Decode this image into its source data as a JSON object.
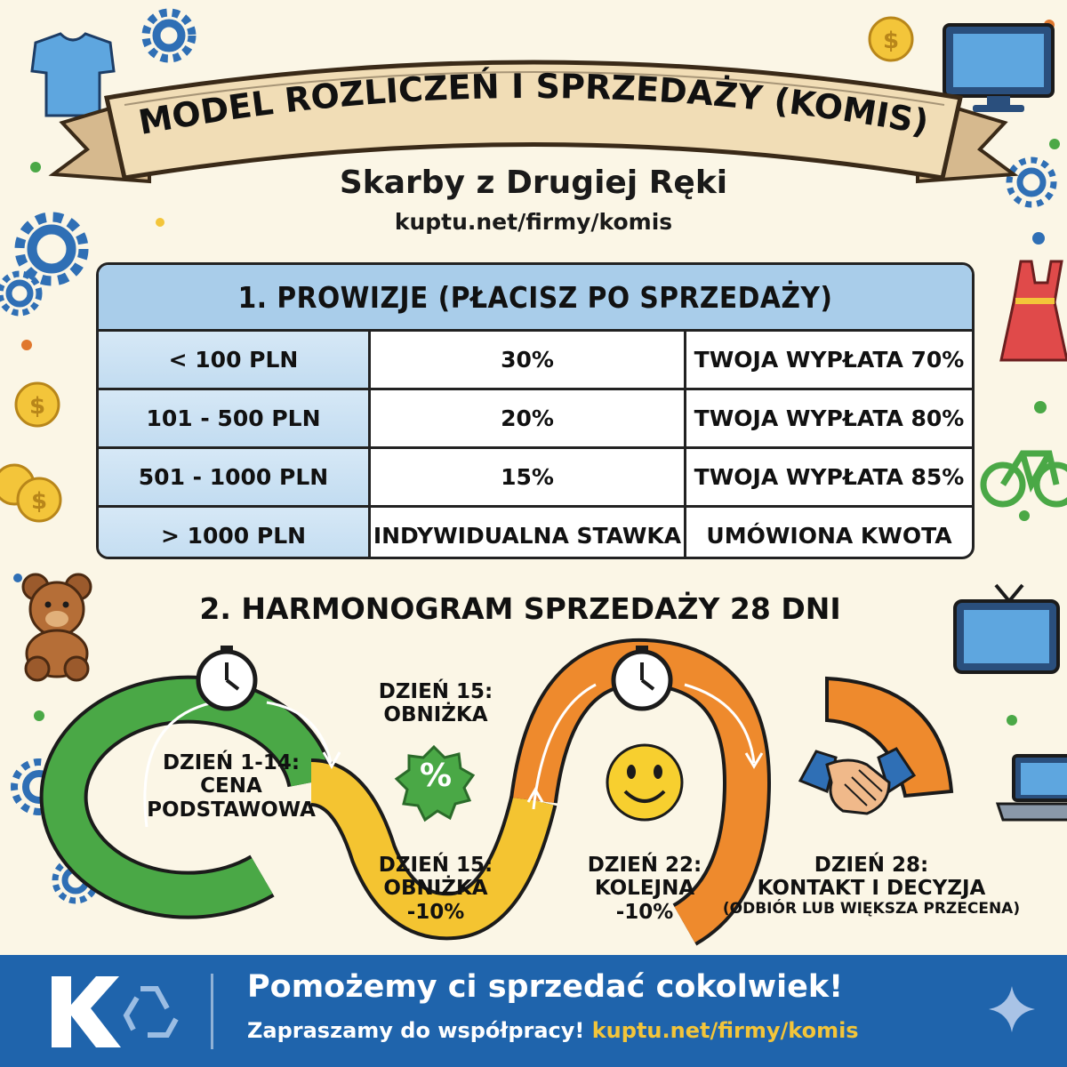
{
  "header": {
    "title": "MODEL ROZLICZEŃ I SPRZEDAŻY (KOMIS)",
    "subtitle": "Skarby z Drugiej Ręki",
    "url": "kuptu.net/firmy/komis"
  },
  "commissions": {
    "heading": "1. PROWIZJE (PŁACISZ PO SPRZEDAŻY)",
    "rows": [
      {
        "range": "< 100 PLN",
        "rate": "30%",
        "payout": "TWOJA WYPŁATA 70%"
      },
      {
        "range": "101 - 500 PLN",
        "rate": "20%",
        "payout": "TWOJA WYPŁATA 80%"
      },
      {
        "range": "501 - 1000 PLN",
        "rate": "15%",
        "payout": "TWOJA WYPŁATA 85%"
      },
      {
        "range": "> 1000 PLN",
        "rate": "INDYWIDUALNA STAWKA",
        "payout": "UMÓWIONA KWOTA"
      }
    ]
  },
  "schedule": {
    "heading": "2. HARMONOGRAM SPRZEDAŻY 28 DNI",
    "stage1": {
      "line1": "DZIEŃ 1-14:",
      "line2": "CENA",
      "line3": "PODSTAWOWA"
    },
    "top_label": {
      "line1": "DZIEŃ 15:",
      "line2": "OBNIŻKA"
    },
    "percent_badge": "%",
    "stage2": {
      "line1": "DZIEŃ 15:",
      "line2": "OBNIŻKA",
      "line3": "-10%"
    },
    "stage3": {
      "line1": "DZIEŃ 22:",
      "line2": "KOLEJNA",
      "line3": "-10%"
    },
    "stage4": {
      "line1": "DZIEŃ 28:",
      "line2": "KONTAKT I DECYZJA",
      "line3": "(ODBIÓR LUB WIĘKSZA PRZECENA)"
    }
  },
  "footer": {
    "title": "Pomożemy ci sprzedać cokolwiek!",
    "invite": "Zapraszamy do współpracy!",
    "link": "kuptu.net/firmy/komis"
  },
  "colors": {
    "background": "#fbf6e6",
    "table_header": "#a9cdea",
    "green": "#4aa846",
    "yellow": "#f4c431",
    "orange": "#ee8a2d",
    "footer": "#1f64ac",
    "link": "#f3c53a"
  },
  "icons": [
    "tshirt-icon",
    "gear-icon",
    "coin-icon",
    "monitor-icon",
    "dress-icon",
    "bicycle-icon",
    "teddy-bear-icon",
    "tv-icon",
    "laptop-icon",
    "clock-icon",
    "handshake-icon",
    "smiley-icon",
    "recycle-icon",
    "sparkle-icon"
  ]
}
